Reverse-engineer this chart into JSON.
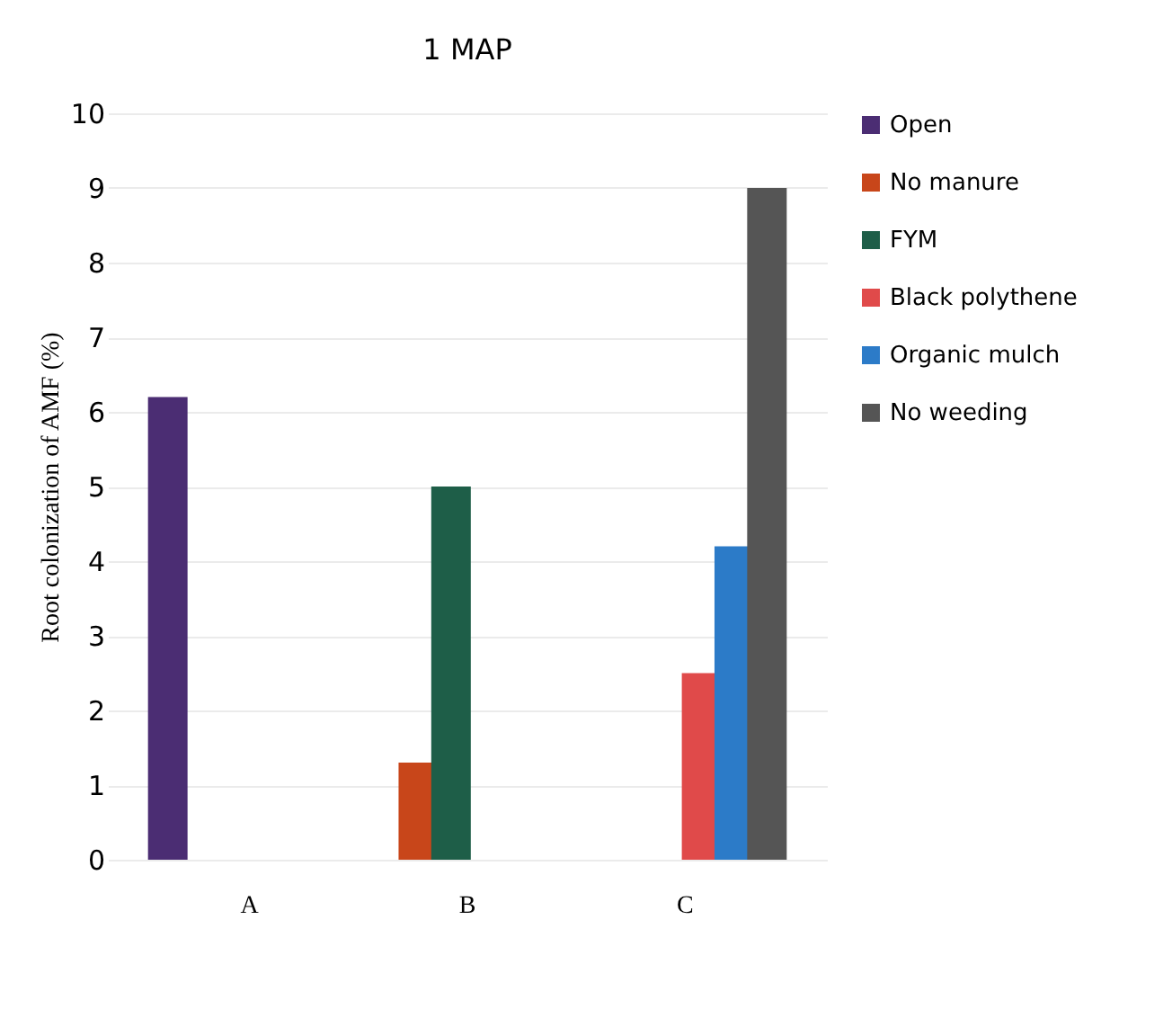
{
  "chart_data": {
    "type": "bar",
    "title": "1 MAP",
    "ylabel": "Root colonization of AMF (%)",
    "categories": [
      "A",
      "B",
      "C"
    ],
    "series": [
      {
        "name": "Open",
        "color": "#4b2d73",
        "values": [
          6.2,
          null,
          null
        ]
      },
      {
        "name": "No manure",
        "color": "#c8461a",
        "values": [
          null,
          1.3,
          null
        ]
      },
      {
        "name": "FYM",
        "color": "#1e5e48",
        "values": [
          null,
          5.0,
          null
        ]
      },
      {
        "name": "Black polythene",
        "color": "#e04a4a",
        "values": [
          null,
          null,
          2.5
        ]
      },
      {
        "name": "Organic mulch",
        "color": "#2c7bc8",
        "values": [
          null,
          null,
          4.2
        ]
      },
      {
        "name": "No weeding",
        "color": "#555555",
        "values": [
          null,
          null,
          9.0
        ]
      }
    ],
    "ylim": [
      0,
      10
    ],
    "yticks": [
      0,
      1,
      2,
      3,
      4,
      5,
      6,
      7,
      8,
      9,
      10
    ],
    "grid": "y",
    "legend": "right"
  }
}
